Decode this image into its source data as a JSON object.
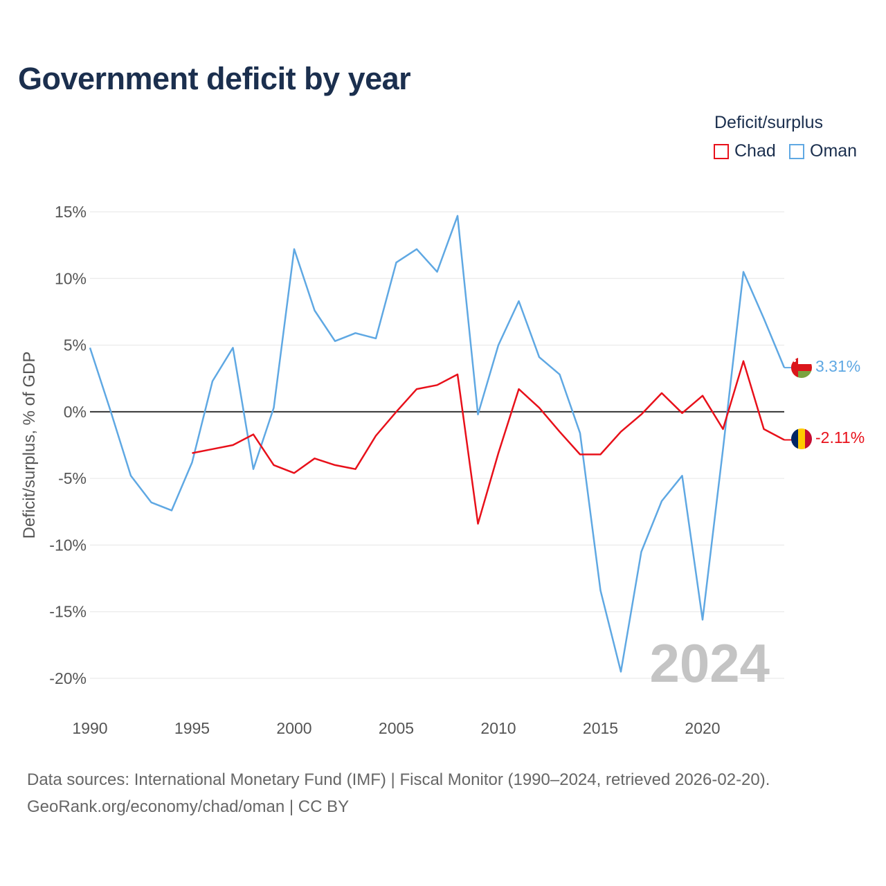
{
  "title": "Government deficit by year",
  "legend": {
    "title": "Deficit/surplus",
    "items": [
      {
        "name": "Chad",
        "color": "#e8101a"
      },
      {
        "name": "Oman",
        "color": "#5fa8e3"
      }
    ]
  },
  "sources": {
    "line1": "Data sources: International Monetary Fund (IMF) | Fiscal Monitor (1990–2024, retrieved 2026-02-20).",
    "line2": "GeoRank.org/economy/chad/oman | CC BY"
  },
  "chart_data": {
    "type": "line",
    "title": "Government deficit by year",
    "xlabel": "",
    "ylabel": "Deficit/surplus, % of GDP",
    "xlim": [
      1990,
      2024
    ],
    "ylim": [
      -20,
      15
    ],
    "x_ticks": [
      1990,
      1995,
      2000,
      2005,
      2010,
      2015,
      2020
    ],
    "y_ticks": [
      15,
      10,
      5,
      0,
      -5,
      -10,
      -15,
      -20
    ],
    "y_tick_labels": [
      "15%",
      "10%",
      "5%",
      "0%",
      "-5%",
      "-10%",
      "-15%",
      "-20%"
    ],
    "year_watermark": "2024",
    "series": [
      {
        "name": "Oman",
        "color": "#5fa8e3",
        "end_label": "3.31%",
        "x": [
          1990,
          1991,
          1992,
          1993,
          1994,
          1995,
          1996,
          1997,
          1998,
          1999,
          2000,
          2001,
          2002,
          2003,
          2004,
          2005,
          2006,
          2007,
          2008,
          2009,
          2010,
          2011,
          2012,
          2013,
          2014,
          2015,
          2016,
          2017,
          2018,
          2019,
          2020,
          2021,
          2022,
          2023,
          2024
        ],
        "values": [
          4.8,
          0.1,
          -4.8,
          -6.8,
          -7.4,
          -3.8,
          2.3,
          4.8,
          -4.3,
          0.3,
          12.2,
          7.6,
          5.3,
          5.9,
          5.5,
          11.2,
          12.2,
          10.5,
          14.7,
          -0.2,
          5.0,
          8.3,
          4.1,
          2.8,
          -1.6,
          -13.4,
          -19.5,
          -10.5,
          -6.7,
          -4.8,
          -15.6,
          -2.8,
          10.5,
          7.0,
          3.31
        ]
      },
      {
        "name": "Chad",
        "color": "#e8101a",
        "end_label": "-2.11%",
        "x": [
          1995,
          1996,
          1997,
          1998,
          1999,
          2000,
          2001,
          2002,
          2003,
          2004,
          2005,
          2006,
          2007,
          2008,
          2009,
          2010,
          2011,
          2012,
          2013,
          2014,
          2015,
          2016,
          2017,
          2018,
          2019,
          2020,
          2021,
          2022,
          2023,
          2024
        ],
        "values": [
          -3.1,
          -2.8,
          -2.5,
          -1.7,
          -4.0,
          -4.6,
          -3.5,
          -4.0,
          -4.3,
          -1.8,
          0.0,
          1.7,
          2.0,
          2.8,
          -8.4,
          -3.1,
          1.7,
          0.3,
          -1.5,
          -3.2,
          -3.2,
          -1.5,
          -0.2,
          1.4,
          -0.1,
          1.2,
          -1.3,
          3.8,
          -1.3,
          -2.11
        ]
      }
    ]
  }
}
